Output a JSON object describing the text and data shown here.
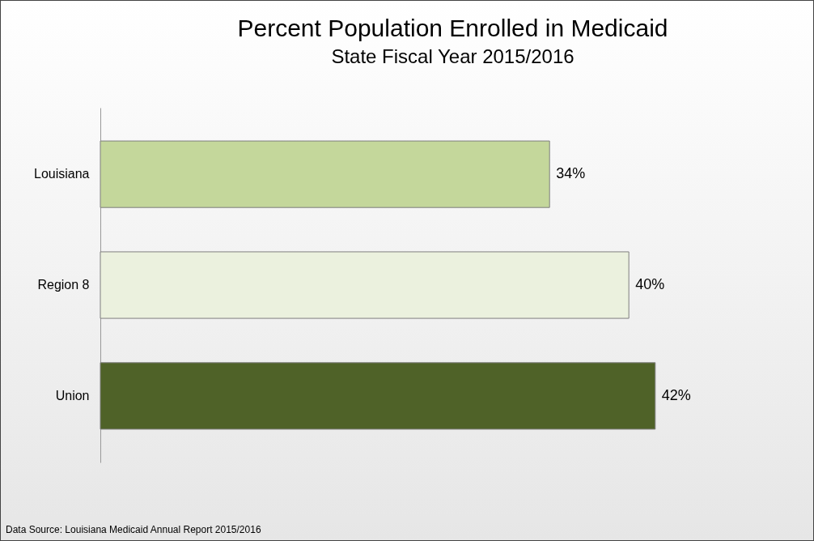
{
  "chart_data": {
    "type": "bar",
    "orientation": "horizontal",
    "title": "Percent Population Enrolled in Medicaid",
    "subtitle": "State Fiscal Year 2015/2016",
    "categories": [
      "Louisiana",
      "Region 8",
      "Union"
    ],
    "values": [
      34,
      40,
      42
    ],
    "colors": [
      "#c4d79b",
      "#ebf1de",
      "#4f6228"
    ],
    "value_labels": [
      "34%",
      "40%",
      "42%"
    ],
    "annotations": [
      "Data Source:  Louisiana Medicaid Annual Report 2015/2016"
    ]
  }
}
